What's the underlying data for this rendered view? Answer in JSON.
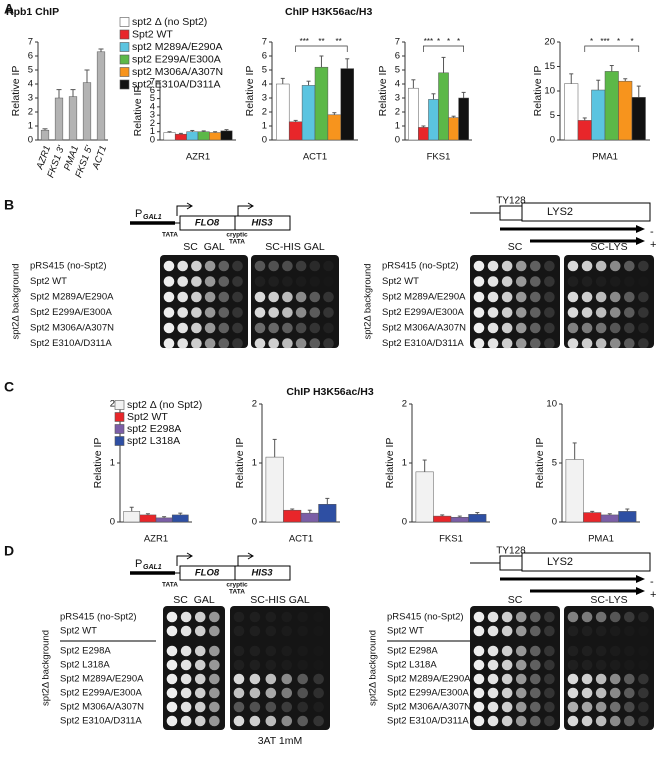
{
  "panel_labels": [
    "A",
    "B",
    "C",
    "D"
  ],
  "chart_data": [
    {
      "type": "bar",
      "title": "Rpb1 ChIP",
      "ylabel": "Relative IP",
      "categories": [
        "AZR1",
        "FKS1 3'",
        "PMA1",
        "FKS1 5'",
        "ACT1"
      ],
      "values": [
        0.7,
        3.0,
        3.1,
        4.1,
        6.3
      ],
      "errors": [
        0.1,
        0.6,
        0.5,
        0.9,
        0.2
      ],
      "color": "#b3b3b3",
      "ylim": [
        0,
        7
      ],
      "yticks": [
        0,
        1,
        2,
        3,
        4,
        5,
        6,
        7
      ]
    },
    {
      "type": "bar",
      "ylabel": "Relative IP",
      "categories": [
        "AZR1"
      ],
      "ylim": [
        0,
        7
      ],
      "yticks": [
        0,
        1,
        2,
        3,
        4,
        5,
        6,
        7
      ],
      "series": [
        {
          "name": "spt2 Δ (no Spt2)",
          "color": "#ffffff",
          "values": [
            0.9
          ],
          "errors": [
            0.1
          ]
        },
        {
          "name": "Spt2 WT",
          "color": "#e8262a",
          "values": [
            0.7
          ],
          "errors": [
            0.1
          ]
        },
        {
          "name": "spt2 M289A/E290A",
          "color": "#5bc4e0",
          "values": [
            1.0
          ],
          "errors": [
            0.15
          ]
        },
        {
          "name": "spt2 E299A/E300A",
          "color": "#5cb848",
          "values": [
            1.0
          ],
          "errors": [
            0.1
          ]
        },
        {
          "name": "spt2 M306A/A307N",
          "color": "#f7941d",
          "values": [
            0.9
          ],
          "errors": [
            0.1
          ]
        },
        {
          "name": "spt2 E310A/D311A",
          "color": "#111111",
          "values": [
            1.1
          ],
          "errors": [
            0.15
          ]
        }
      ]
    },
    {
      "type": "bar",
      "title": "ChIP H3K56ac/H3",
      "ylabel": "Relative IP",
      "categories": [
        "ACT1"
      ],
      "ylim": [
        0,
        7
      ],
      "yticks": [
        0,
        1,
        2,
        3,
        4,
        5,
        6,
        7
      ],
      "annotations": [
        "***",
        "**",
        "**"
      ],
      "series": [
        {
          "color": "#ffffff",
          "values": [
            4.0
          ],
          "errors": [
            0.4
          ]
        },
        {
          "color": "#e8262a",
          "values": [
            1.3
          ],
          "errors": [
            0.1
          ]
        },
        {
          "color": "#5bc4e0",
          "values": [
            3.9
          ],
          "errors": [
            0.3
          ]
        },
        {
          "color": "#5cb848",
          "values": [
            5.2
          ],
          "errors": [
            0.8
          ]
        },
        {
          "color": "#f7941d",
          "values": [
            1.8
          ],
          "errors": [
            0.15
          ]
        },
        {
          "color": "#111111",
          "values": [
            5.1
          ],
          "errors": [
            0.7
          ]
        }
      ]
    },
    {
      "type": "bar",
      "ylabel": "Relative IP",
      "categories": [
        "FKS1"
      ],
      "ylim": [
        0,
        7
      ],
      "yticks": [
        0,
        1,
        2,
        3,
        4,
        5,
        6,
        7
      ],
      "annotations": [
        "***",
        "*",
        "*",
        "*"
      ],
      "series": [
        {
          "color": "#ffffff",
          "values": [
            3.7
          ],
          "errors": [
            0.6
          ]
        },
        {
          "color": "#e8262a",
          "values": [
            0.9
          ],
          "errors": [
            0.1
          ]
        },
        {
          "color": "#5bc4e0",
          "values": [
            2.9
          ],
          "errors": [
            0.4
          ]
        },
        {
          "color": "#5cb848",
          "values": [
            4.8
          ],
          "errors": [
            1.1
          ]
        },
        {
          "color": "#f7941d",
          "values": [
            1.6
          ],
          "errors": [
            0.1
          ]
        },
        {
          "color": "#111111",
          "values": [
            3.0
          ],
          "errors": [
            0.4
          ]
        }
      ]
    },
    {
      "type": "bar",
      "ylabel": "Relative IP",
      "categories": [
        "PMA1"
      ],
      "ylim": [
        0,
        20
      ],
      "yticks": [
        0,
        5,
        10,
        15,
        20
      ],
      "annotations": [
        "*",
        "***",
        "*",
        "*"
      ],
      "series": [
        {
          "color": "#ffffff",
          "values": [
            11.5
          ],
          "errors": [
            2.0
          ]
        },
        {
          "color": "#e8262a",
          "values": [
            4.0
          ],
          "errors": [
            0.5
          ]
        },
        {
          "color": "#5bc4e0",
          "values": [
            10.2
          ],
          "errors": [
            2.0
          ]
        },
        {
          "color": "#5cb848",
          "values": [
            14.0
          ],
          "errors": [
            1.2
          ]
        },
        {
          "color": "#f7941d",
          "values": [
            12.0
          ],
          "errors": [
            0.5
          ]
        },
        {
          "color": "#111111",
          "values": [
            8.7
          ],
          "errors": [
            2.3
          ]
        }
      ]
    },
    {
      "type": "bar",
      "ylabel": "Relative IP",
      "categories": [
        "AZR1"
      ],
      "ylim": [
        0,
        2
      ],
      "yticks": [
        0,
        1,
        2
      ],
      "series": [
        {
          "name": "spt2 Δ (no Spt2)",
          "color": "#f2f2f2",
          "values": [
            0.18
          ],
          "errors": [
            0.07
          ]
        },
        {
          "name": "Spt2 WT",
          "color": "#e8262a",
          "values": [
            0.12
          ],
          "errors": [
            0.02
          ]
        },
        {
          "name": "spt2 E298A",
          "color": "#7b5ea7",
          "values": [
            0.07
          ],
          "errors": [
            0.02
          ]
        },
        {
          "name": "spt2 L318A",
          "color": "#2e4fa3",
          "values": [
            0.12
          ],
          "errors": [
            0.03
          ]
        }
      ]
    },
    {
      "type": "bar",
      "title": "ChIP H3K56ac/H3",
      "ylabel": "Relative IP",
      "categories": [
        "ACT1"
      ],
      "ylim": [
        0,
        2
      ],
      "yticks": [
        0,
        1,
        2
      ],
      "series": [
        {
          "color": "#f2f2f2",
          "values": [
            1.1
          ],
          "errors": [
            0.3
          ]
        },
        {
          "color": "#e8262a",
          "values": [
            0.2
          ],
          "errors": [
            0.02
          ]
        },
        {
          "color": "#7b5ea7",
          "values": [
            0.15
          ],
          "errors": [
            0.05
          ]
        },
        {
          "color": "#2e4fa3",
          "values": [
            0.3
          ],
          "errors": [
            0.1
          ]
        }
      ]
    },
    {
      "type": "bar",
      "ylabel": "Relative IP",
      "categories": [
        "FKS1"
      ],
      "ylim": [
        0,
        2
      ],
      "yticks": [
        0,
        1,
        2
      ],
      "series": [
        {
          "color": "#f2f2f2",
          "values": [
            0.85
          ],
          "errors": [
            0.2
          ]
        },
        {
          "color": "#e8262a",
          "values": [
            0.1
          ],
          "errors": [
            0.02
          ]
        },
        {
          "color": "#7b5ea7",
          "values": [
            0.08
          ],
          "errors": [
            0.02
          ]
        },
        {
          "color": "#2e4fa3",
          "values": [
            0.13
          ],
          "errors": [
            0.03
          ]
        }
      ]
    },
    {
      "type": "bar",
      "ylabel": "Relative IP",
      "categories": [
        "PMA1"
      ],
      "ylim": [
        0,
        10
      ],
      "yticks": [
        0,
        5,
        10
      ],
      "series": [
        {
          "color": "#f2f2f2",
          "values": [
            5.3
          ],
          "errors": [
            1.4
          ]
        },
        {
          "color": "#e8262a",
          "values": [
            0.8
          ],
          "errors": [
            0.1
          ]
        },
        {
          "color": "#7b5ea7",
          "values": [
            0.6
          ],
          "errors": [
            0.1
          ]
        },
        {
          "color": "#2e4fa3",
          "values": [
            0.9
          ],
          "errors": [
            0.2
          ]
        }
      ]
    }
  ],
  "panel_b": {
    "flo8_construct": {
      "promoter": "P",
      "promoter_sub": "GAL1",
      "tata": "TATA",
      "gene1": "FLO8",
      "gene2": "HIS3",
      "cryptic": "cryptic",
      "cryptic_tata": "TATA"
    },
    "lys2_construct": {
      "element": "TY128",
      "gene": "LYS2",
      "minus": "-",
      "plus": "+"
    },
    "plates_left": [
      "SC  GAL",
      "SC-HIS GAL"
    ],
    "plates_right": [
      "SC",
      "SC-LYS"
    ],
    "background_left": "spt2Δ background",
    "background_right": "spt2Δ background",
    "strains_left": [
      "pRS415 (no-Spt2)",
      "Spt2  WT",
      "Spt2 M289A/E290A",
      "Spt2 E299A/E300A",
      "Spt2 M306A/A307N",
      "Spt2 E310A/D311A"
    ],
    "strains_right": [
      "pRS415 (no-Spt2)",
      "Spt2  WT",
      "Spt2 M289A/E290A",
      "Spt2 E299A/E300A",
      "Spt2 M306A/A307N",
      "Spt2 E310A/D311A"
    ]
  },
  "panel_d": {
    "flo8_construct": {
      "promoter": "P",
      "promoter_sub": "GAL1",
      "tata": "TATA",
      "gene1": "FLO8",
      "gene2": "HIS3",
      "cryptic": "cryptic",
      "cryptic_tata": "TATA"
    },
    "lys2_construct": {
      "element": "TY128",
      "gene": "LYS2",
      "minus": "-",
      "plus": "+"
    },
    "plates_left": [
      "SC  GAL",
      "SC-HIS GAL"
    ],
    "plates_right": [
      "SC",
      "SC-LYS"
    ],
    "background_left": "spt2Δ background",
    "background_right": "spt2Δ background",
    "note": "3AT 1mM",
    "strains_left": [
      "pRS415 (no-Spt2)",
      "Spt2  WT",
      "Spt2 E298A",
      "Spt2 L318A",
      "Spt2 M289A/E290A",
      "Spt2 E299A/E300A",
      "Spt2 M306A/A307N",
      "Spt2 E310A/D311A"
    ],
    "strains_right": [
      "pRS415 (no-Spt2)",
      "Spt2  WT",
      "Spt2 E298A",
      "Spt2 L318A",
      "Spt2 M289A/E290A",
      "Spt2 E299A/E300A",
      "Spt2 M306A/A307N",
      "Spt2 E310A/D311A"
    ]
  }
}
